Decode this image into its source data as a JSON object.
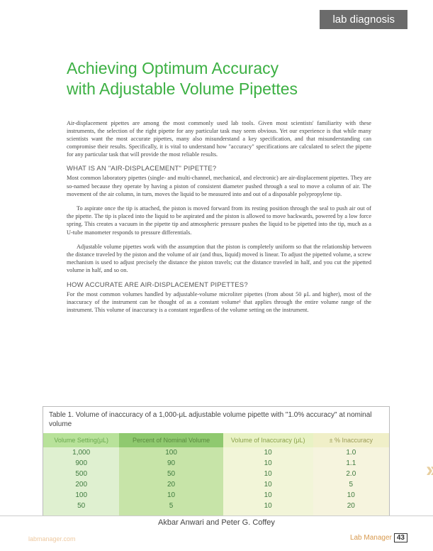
{
  "badge": "lab diagnosis",
  "title_line1": "Achieving Optimum Accuracy",
  "title_line2": "with Adjustable Volume Pipettes",
  "p1": "Air-displacement pipettes are among the most commonly used lab tools. Given most scientists' familiarity with these instruments, the selection of the right pipette for any particular task may seem obvious. Yet our experience is that while many scientists want the most accurate pipettes, many also misunderstand a key specification, and that misunderstanding can compromise their results. Specifically, it is vital to understand how \"accuracy\" specifications are calculated to select the pipette for any particular task that will provide the most reliable results.",
  "h1": "WHAT IS AN \"AIR-DISPLACEMENT\" PIPETTE?",
  "p2": "Most common laboratory pipettes (single- and multi-channel, mechanical, and electronic) are air-displacement pipettes. They are so-named because they operate by having a piston of consistent diameter pushed through a seal to move a column of air. The movement of the air column, in turn, moves the liquid to be measured into and out of a disposable polypropylene tip.",
  "p3": "To aspirate once the tip is attached, the piston is moved forward from its resting position through the seal to push air out of the pipette. The tip is placed into the liquid to be aspirated and the piston is allowed to move backwards, powered by a low force spring. This creates a vacuum in the pipette tip and atmospheric pressure pushes the liquid to be pipetted into the tip, much as a U-tube manometer responds to pressure differentials.",
  "p4": "Adjustable volume pipettes work with the assumption that the piston is completely uniform so that the relationship between the distance traveled by the piston and the volume of air (and thus, liquid) moved is linear. To adjust the pipetted volume, a screw mechanism is used to adjust precisely the distance the piston travels; cut the distance traveled in half, and you cut the pipetted volume in half, and so on.",
  "h2": "HOW ACCURATE ARE AIR-DISPLACEMENT PIPETTES?",
  "p5": "For the most common volumes handled by adjustable-volume microliter pipettes (from about 50 μL and higher), most of the inaccuracy of the instrument can be thought of as a constant volume¹ that applies through the entire volume range of the instrument. This volume of inaccuracy is a constant regardless of the volume setting on the instrument.",
  "table": {
    "caption": "Table 1. Volume of inaccuracy of a 1,000-μL adjustable volume pipette with \"1.0% accuracy\" at nominal volume",
    "headers": [
      "Volume Setting(μL)",
      "Percent of Nominal Volume",
      "Volume of Inaccuracy (μL)",
      "± % Inaccuracy"
    ],
    "header_bg": [
      "#b8e29a",
      "#8fc96f",
      "#e8f2c4",
      "#f0efc8"
    ],
    "col_bg": [
      "#dff0d0",
      "#c7e4a8",
      "#f2f5d8",
      "#f6f4de"
    ],
    "rows": [
      [
        "1,000",
        "100",
        "10",
        "1.0"
      ],
      [
        "900",
        "90",
        "10",
        "1.1"
      ],
      [
        "500",
        "50",
        "10",
        "2.0"
      ],
      [
        "200",
        "20",
        "10",
        "5"
      ],
      [
        "100",
        "10",
        "10",
        "10"
      ],
      [
        "50",
        "5",
        "10",
        "20"
      ]
    ]
  },
  "authors": "Akbar Anwari and Peter G. Coffey",
  "footer_left": "labmanager.com",
  "footer_right": "Lab Manager",
  "page_number": "43",
  "colors": {
    "badge_bg": "#6b6b6b",
    "title_color": "#3cb043",
    "footer_accent": "#d89a4f"
  }
}
